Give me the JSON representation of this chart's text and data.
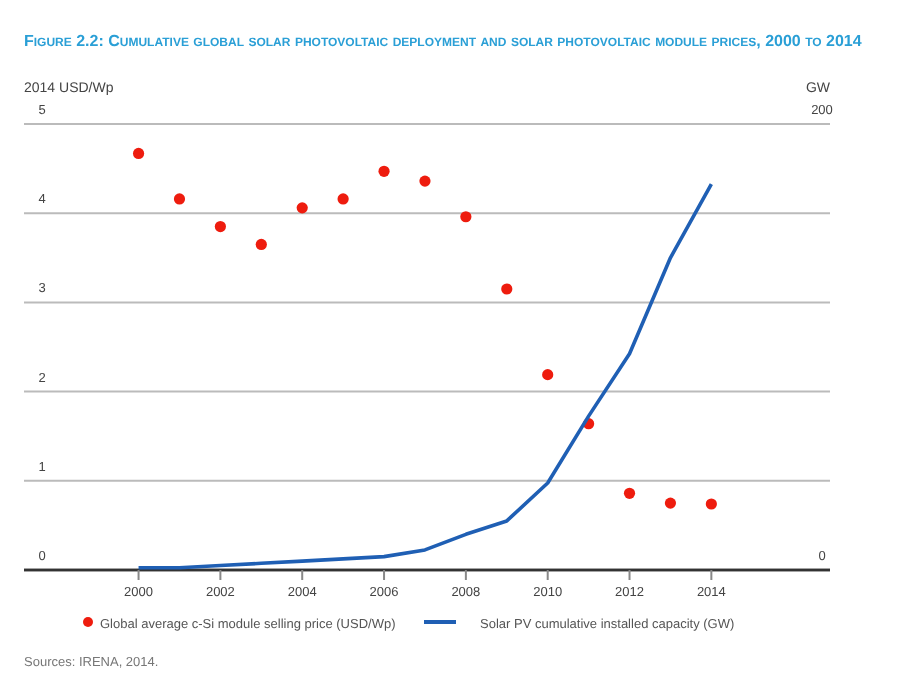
{
  "chart_data": {
    "type": "scatter",
    "title": "Figure 2.2: Cumulative global solar photovoltaic deployment and solar photovoltaic module prices, 2000 to 2014",
    "ylabel": "2014 USD/Wp",
    "y2label": "GW",
    "x": [
      2000,
      2001,
      2002,
      2003,
      2004,
      2005,
      2006,
      2007,
      2008,
      2009,
      2010,
      2011,
      2012,
      2013,
      2014
    ],
    "series": [
      {
        "name": "Global average c-Si module selling price (USD/Wp)",
        "color": "#ee1c0e",
        "marker": "circle",
        "values": [
          4.67,
          4.16,
          3.85,
          3.65,
          4.06,
          4.16,
          4.47,
          4.36,
          3.96,
          3.15,
          2.19,
          1.64,
          0.86,
          0.75,
          0.74
        ]
      },
      {
        "name": "Solar PV cumulative installed capacity (GW)",
        "type": "line",
        "axis": "y2",
        "color": "#1f5fb4",
        "marker": "none",
        "line_style": "solid",
        "values": [
          1,
          1,
          2,
          3,
          4,
          5,
          6,
          9,
          16,
          22,
          39,
          69,
          97,
          140,
          173
        ]
      }
    ],
    "xlim": [
      1997.2,
      2016.9
    ],
    "xticks": [
      2000,
      2002,
      2004,
      2006,
      2008,
      2010,
      2012,
      2014
    ],
    "ylim": [
      0,
      5
    ],
    "yticks": [
      0,
      1,
      2,
      3,
      4,
      5
    ],
    "y2lim": [
      0,
      200
    ],
    "y2ticks": [
      0,
      200
    ],
    "grid": "y",
    "legend": "bottom",
    "annotations": [
      "Sources: IRENA, 2014."
    ]
  }
}
